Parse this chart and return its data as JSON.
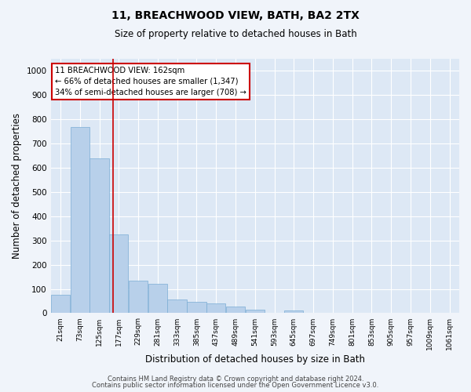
{
  "title1": "11, BREACHWOOD VIEW, BATH, BA2 2TX",
  "title2": "Size of property relative to detached houses in Bath",
  "xlabel": "Distribution of detached houses by size in Bath",
  "ylabel": "Number of detached properties",
  "bar_data": [
    {
      "label": "21sqm",
      "value": 75
    },
    {
      "label": "73sqm",
      "value": 770
    },
    {
      "label": "125sqm",
      "value": 640
    },
    {
      "label": "177sqm",
      "value": 325
    },
    {
      "label": "229sqm",
      "value": 135
    },
    {
      "label": "281sqm",
      "value": 120
    },
    {
      "label": "333sqm",
      "value": 57
    },
    {
      "label": "385sqm",
      "value": 47
    },
    {
      "label": "437sqm",
      "value": 40
    },
    {
      "label": "489sqm",
      "value": 28
    },
    {
      "label": "541sqm",
      "value": 15
    },
    {
      "label": "593sqm",
      "value": 0
    },
    {
      "label": "645sqm",
      "value": 12
    },
    {
      "label": "697sqm",
      "value": 0
    },
    {
      "label": "749sqm",
      "value": 0
    },
    {
      "label": "801sqm",
      "value": 0
    },
    {
      "label": "853sqm",
      "value": 0
    },
    {
      "label": "905sqm",
      "value": 0
    },
    {
      "label": "957sqm",
      "value": 0
    },
    {
      "label": "1009sqm",
      "value": 0
    },
    {
      "label": "1061sqm",
      "value": 0
    }
  ],
  "bar_color": "#b8d0ea",
  "bar_edge_color": "#7aadd4",
  "background_color": "#dde8f5",
  "grid_color": "#ffffff",
  "vline_x_index": 2.72,
  "vline_color": "#cc0000",
  "annotation_text": "11 BREACHWOOD VIEW: 162sqm\n← 66% of detached houses are smaller (1,347)\n34% of semi-detached houses are larger (708) →",
  "annotation_box_color": "#ffffff",
  "annotation_box_edge": "#cc0000",
  "ylim": [
    0,
    1050
  ],
  "yticks": [
    0,
    100,
    200,
    300,
    400,
    500,
    600,
    700,
    800,
    900,
    1000
  ],
  "footer1": "Contains HM Land Registry data © Crown copyright and database right 2024.",
  "footer2": "Contains public sector information licensed under the Open Government Licence v3.0."
}
